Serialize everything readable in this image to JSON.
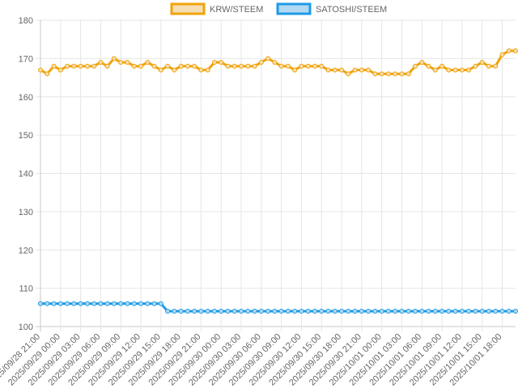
{
  "chart_data": {
    "type": "line",
    "xlabel": "",
    "ylabel": "",
    "ylim": [
      100,
      180
    ],
    "yticks": [
      100,
      110,
      120,
      130,
      140,
      150,
      160,
      170,
      180
    ],
    "grid": true,
    "legend_position": "top-center",
    "x": [
      "2025/09/28 21:00",
      "2025/09/28 22:00",
      "2025/09/28 23:00",
      "2025/09/29 00:00",
      "2025/09/29 01:00",
      "2025/09/29 02:00",
      "2025/09/29 03:00",
      "2025/09/29 04:00",
      "2025/09/29 05:00",
      "2025/09/29 06:00",
      "2025/09/29 07:00",
      "2025/09/29 08:00",
      "2025/09/29 09:00",
      "2025/09/29 10:00",
      "2025/09/29 11:00",
      "2025/09/29 12:00",
      "2025/09/29 13:00",
      "2025/09/29 14:00",
      "2025/09/29 15:00",
      "2025/09/29 16:00",
      "2025/09/29 17:00",
      "2025/09/29 18:00",
      "2025/09/29 19:00",
      "2025/09/29 20:00",
      "2025/09/29 21:00",
      "2025/09/29 22:00",
      "2025/09/29 23:00",
      "2025/09/30 00:00",
      "2025/09/30 01:00",
      "2025/09/30 02:00",
      "2025/09/30 03:00",
      "2025/09/30 04:00",
      "2025/09/30 05:00",
      "2025/09/30 06:00",
      "2025/09/30 07:00",
      "2025/09/30 08:00",
      "2025/09/30 09:00",
      "2025/09/30 10:00",
      "2025/09/30 11:00",
      "2025/09/30 12:00",
      "2025/09/30 13:00",
      "2025/09/30 14:00",
      "2025/09/30 15:00",
      "2025/09/30 16:00",
      "2025/09/30 17:00",
      "2025/09/30 18:00",
      "2025/09/30 19:00",
      "2025/09/30 20:00",
      "2025/09/30 21:00",
      "2025/09/30 22:00",
      "2025/09/30 23:00",
      "2025/10/01 00:00",
      "2025/10/01 01:00",
      "2025/10/01 02:00",
      "2025/10/01 03:00",
      "2025/10/01 04:00",
      "2025/10/01 05:00",
      "2025/10/01 06:00",
      "2025/10/01 07:00",
      "2025/10/01 08:00",
      "2025/10/01 09:00",
      "2025/10/01 10:00",
      "2025/10/01 11:00",
      "2025/10/01 12:00",
      "2025/10/01 13:00",
      "2025/10/01 14:00",
      "2025/10/01 15:00",
      "2025/10/01 16:00",
      "2025/10/01 17:00",
      "2025/10/01 18:00",
      "2025/10/01 19:00",
      "2025/10/01 20:00"
    ],
    "x_tick_labels_every": 3,
    "series": [
      {
        "name": "KRW/STEEM",
        "color": "#f0a30a",
        "fill": "#f5deb3",
        "values": [
          167,
          166,
          168,
          167,
          168,
          168,
          168,
          168,
          168,
          169,
          168,
          170,
          169,
          169,
          168,
          168,
          169,
          168,
          167,
          168,
          167,
          168,
          168,
          168,
          167,
          167,
          169,
          169,
          168,
          168,
          168,
          168,
          168,
          169,
          170,
          169,
          168,
          168,
          167,
          168,
          168,
          168,
          168,
          167,
          167,
          167,
          166,
          167,
          167,
          167,
          166,
          166,
          166,
          166,
          166,
          166,
          168,
          169,
          168,
          167,
          168,
          167,
          167,
          167,
          167,
          168,
          169,
          168,
          168,
          171,
          172,
          172
        ]
      },
      {
        "name": "SATOSHI/STEEM",
        "color": "#1e9be6",
        "fill": "#b3d9f2",
        "values": [
          106,
          106,
          106,
          106,
          106,
          106,
          106,
          106,
          106,
          106,
          106,
          106,
          106,
          106,
          106,
          106,
          106,
          106,
          106,
          104,
          104,
          104,
          104,
          104,
          104,
          104,
          104,
          104,
          104,
          104,
          104,
          104,
          104,
          104,
          104,
          104,
          104,
          104,
          104,
          104,
          104,
          104,
          104,
          104,
          104,
          104,
          104,
          104,
          104,
          104,
          104,
          104,
          104,
          104,
          104,
          104,
          104,
          104,
          104,
          104,
          104,
          104,
          104,
          104,
          104,
          104,
          104,
          104,
          104,
          104,
          104,
          104
        ]
      }
    ]
  }
}
